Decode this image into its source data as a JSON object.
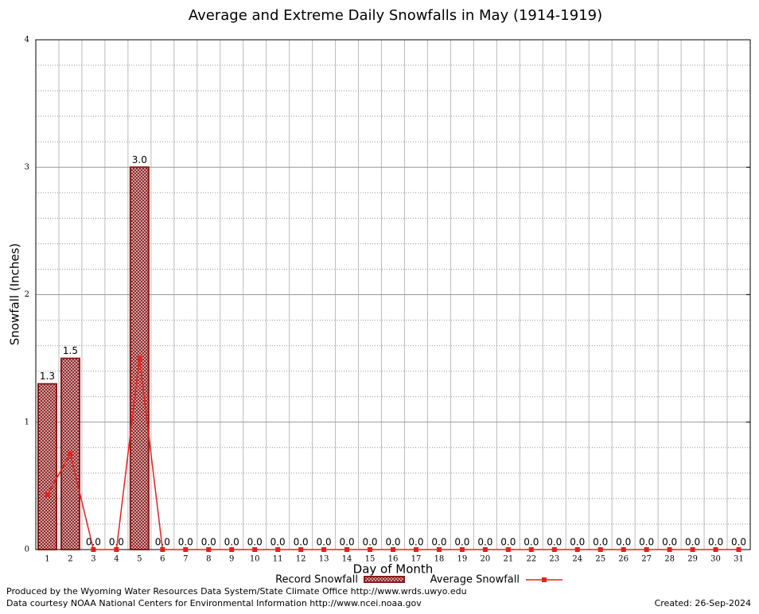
{
  "chart_data": {
    "type": "bar",
    "title": "Average and Extreme Daily Snowfalls in May (1914-1919)",
    "x_label": "Day of Month",
    "y_label": "Snowfall (Inches)",
    "categories": [
      "1",
      "2",
      "3",
      "4",
      "5",
      "6",
      "7",
      "8",
      "9",
      "10",
      "11",
      "12",
      "13",
      "14",
      "15",
      "16",
      "17",
      "18",
      "19",
      "20",
      "21",
      "22",
      "23",
      "24",
      "25",
      "26",
      "27",
      "28",
      "29",
      "30",
      "31"
    ],
    "series": [
      {
        "name": "Record Snowfall",
        "type": "bar",
        "color": "#8b1a1a",
        "values": [
          1.3,
          1.5,
          0,
          0,
          3.0,
          0,
          0,
          0,
          0,
          0,
          0,
          0,
          0,
          0,
          0,
          0,
          0,
          0,
          0,
          0,
          0,
          0,
          0,
          0,
          0,
          0,
          0,
          0,
          0,
          0,
          0
        ],
        "value_labels": [
          "1.3",
          "1.5",
          "0.0",
          "0.0",
          "3.0",
          "0.0",
          "0.0",
          "0.0",
          "0.0",
          "0.0",
          "0.0",
          "0.0",
          "0.0",
          "0.0",
          "0.0",
          "0.0",
          "0.0",
          "0.0",
          "0.0",
          "0.0",
          "0.0",
          "0.0",
          "0.0",
          "0.0",
          "0.0",
          "0.0",
          "0.0",
          "0.0",
          "0.0",
          "0.0",
          "0.0"
        ]
      },
      {
        "name": "Average Snowfall",
        "type": "line",
        "color": "#e8201e",
        "values": [
          0.43,
          0.75,
          0,
          0,
          1.5,
          0,
          0,
          0,
          0,
          0,
          0,
          0,
          0,
          0,
          0,
          0,
          0,
          0,
          0,
          0,
          0,
          0,
          0,
          0,
          0,
          0,
          0,
          0,
          0,
          0,
          0
        ]
      }
    ],
    "ylim": [
      0,
      4
    ],
    "yticks": [
      0,
      1,
      2,
      3,
      4
    ],
    "grid": true,
    "footer_left": [
      "Produced by the Wyoming Water Resources Data System/State Climate Office http://www.wrds.uwyo.edu",
      "Data courtesy NOAA National Centers for Environmental Information http://www.ncei.noaa.gov"
    ],
    "footer_right": "Created:  26-Sep-2024"
  }
}
